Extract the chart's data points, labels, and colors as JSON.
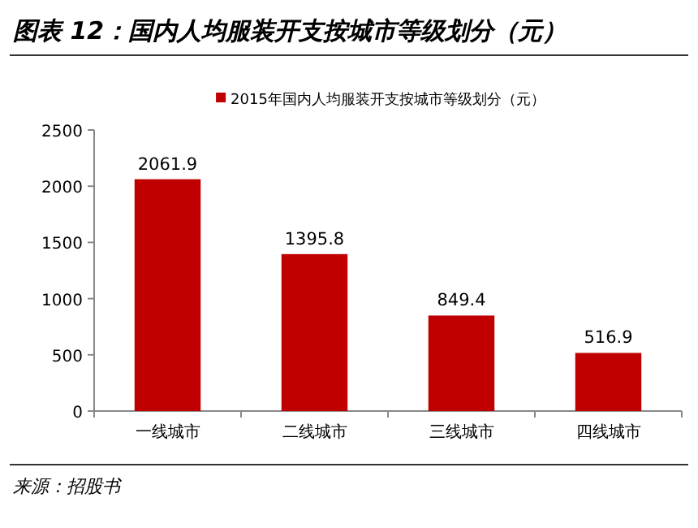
{
  "chart_data": {
    "type": "bar",
    "title": "图表 12：国内人均服装开支按城市等级划分（元）",
    "categories": [
      "一线城市",
      "二线城市",
      "三线城市",
      "四线城市"
    ],
    "series": [
      {
        "name": "2015年国内人均服装开支按城市等级划分（元）",
        "color": "#c00000",
        "values": [
          2061.9,
          1395.8,
          849.4,
          516.9
        ]
      }
    ],
    "ylim": [
      0,
      2500
    ],
    "yticks": [
      0,
      500,
      1000,
      1500,
      2000,
      2500
    ],
    "data_labels": true,
    "legend": "top",
    "grid": false,
    "annotations": [
      "来源：招股书"
    ]
  }
}
